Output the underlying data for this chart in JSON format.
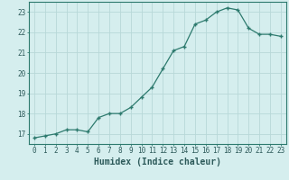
{
  "x": [
    0,
    1,
    2,
    3,
    4,
    5,
    6,
    7,
    8,
    9,
    10,
    11,
    12,
    13,
    14,
    15,
    16,
    17,
    18,
    19,
    20,
    21,
    22,
    23
  ],
  "y": [
    16.8,
    16.9,
    17.0,
    17.2,
    17.2,
    17.1,
    17.8,
    18.0,
    18.0,
    18.3,
    18.8,
    19.3,
    20.2,
    21.1,
    21.3,
    22.4,
    22.6,
    23.0,
    23.2,
    23.1,
    22.2,
    21.9,
    21.9,
    21.8
  ],
  "xlabel": "Humidex (Indice chaleur)",
  "ylim": [
    16.5,
    23.5
  ],
  "xlim": [
    -0.5,
    23.5
  ],
  "yticks": [
    17,
    18,
    19,
    20,
    21,
    22,
    23
  ],
  "xticks": [
    0,
    1,
    2,
    3,
    4,
    5,
    6,
    7,
    8,
    9,
    10,
    11,
    12,
    13,
    14,
    15,
    16,
    17,
    18,
    19,
    20,
    21,
    22,
    23
  ],
  "line_color": "#2d7a6e",
  "marker_color": "#2d7a6e",
  "bg_color": "#d5eeee",
  "grid_color": "#b8d8d8",
  "axis_color": "#2d7a6e",
  "font_color": "#2d5a5a",
  "tick_fontsize": 5.5,
  "xlabel_fontsize": 7.0
}
